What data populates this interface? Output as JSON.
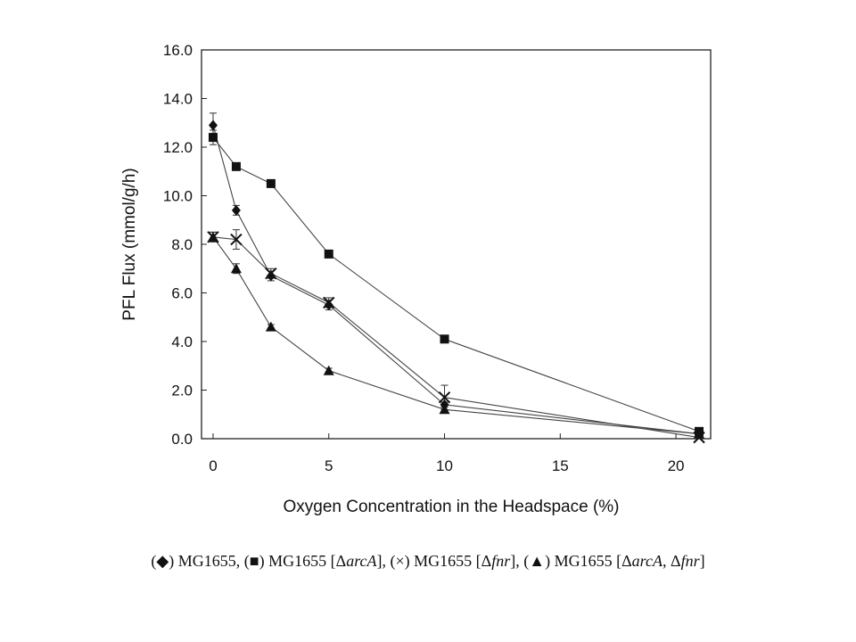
{
  "chart_data": {
    "type": "scatter",
    "mode": "lines+markers",
    "xlabel": "Oxygen Concentration in the Headspace (%)",
    "ylabel": "PFL Flux (mmol/g/h)",
    "xlim": [
      -0.5,
      21.5
    ],
    "ylim": [
      0,
      16
    ],
    "xticks": [
      0,
      5,
      10,
      15,
      20
    ],
    "yticks": [
      0,
      2,
      4,
      6,
      8,
      10,
      12,
      14,
      16
    ],
    "ytick_labels": [
      "0.0",
      "2.0",
      "4.0",
      "6.0",
      "8.0",
      "10.0",
      "12.0",
      "14.0",
      "16.0"
    ],
    "grid": false,
    "legend": "caption below chart",
    "series": [
      {
        "marker": "diamond",
        "x": [
          0,
          1,
          2.5,
          5,
          10,
          21
        ],
        "y": [
          12.9,
          9.4,
          6.7,
          5.5,
          1.4,
          0.2
        ],
        "err": [
          0.5,
          0.2,
          0.2,
          0.2,
          0.1,
          0.05
        ]
      },
      {
        "marker": "square",
        "x": [
          0,
          1,
          2.5,
          5,
          10,
          21
        ],
        "y": [
          12.4,
          11.2,
          10.5,
          7.6,
          4.1,
          0.3
        ],
        "err": [
          0.3,
          0.1,
          0.1,
          0.1,
          0.1,
          0.05
        ]
      },
      {
        "marker": "x",
        "x": [
          0,
          1,
          2.5,
          5,
          10,
          21
        ],
        "y": [
          8.3,
          8.2,
          6.8,
          5.6,
          1.7,
          0.05
        ],
        "err": [
          0.2,
          0.4,
          0.2,
          0.2,
          0.5,
          0.05
        ]
      },
      {
        "marker": "triangle",
        "x": [
          0,
          1,
          2.5,
          5,
          10,
          21
        ],
        "y": [
          8.3,
          7.0,
          4.6,
          2.8,
          1.2,
          0.2
        ],
        "err": [
          0.2,
          0.2,
          0.1,
          0.1,
          0.1,
          0.05
        ]
      }
    ],
    "caption": [
      {
        "text": "(",
        "style": "normal"
      },
      {
        "text": "◆",
        "style": "normal"
      },
      {
        "text": ") MG1655, (",
        "style": "normal"
      },
      {
        "text": "■",
        "style": "normal"
      },
      {
        "text": ") MG1655 [Δ",
        "style": "normal"
      },
      {
        "text": "arcA",
        "style": "italic"
      },
      {
        "text": "], (×) MG1655 [Δ",
        "style": "normal"
      },
      {
        "text": "fnr",
        "style": "italic"
      },
      {
        "text": "], (",
        "style": "normal"
      },
      {
        "text": "▲",
        "style": "normal"
      },
      {
        "text": ") MG1655 [Δ",
        "style": "normal"
      },
      {
        "text": "arcA",
        "style": "italic"
      },
      {
        "text": ", Δ",
        "style": "normal"
      },
      {
        "text": "fnr",
        "style": "italic"
      },
      {
        "text": "]",
        "style": "normal"
      }
    ]
  }
}
